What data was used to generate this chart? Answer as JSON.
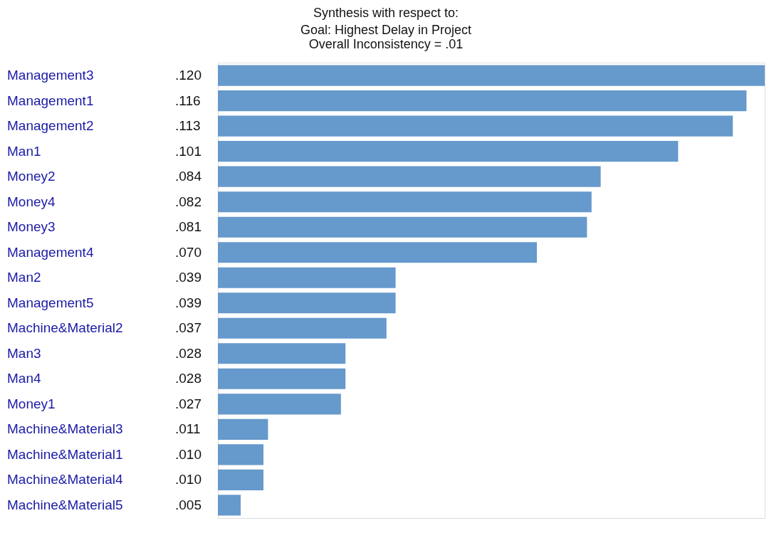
{
  "chart_data": {
    "type": "bar",
    "orientation": "horizontal",
    "title": "Synthesis with respect to:",
    "subtitle": "Goal: Highest Delay in Project\nOverall Inconsistency = .01",
    "categories": [
      "Management3",
      "Management1",
      "Management2",
      "Man1",
      "Money2",
      "Money4",
      "Money3",
      "Management4",
      "Man2",
      "Management5",
      "Machine&Material2",
      "Man3",
      "Man4",
      "Money1",
      "Machine&Material3",
      "Machine&Material1",
      "Machine&Material4",
      "Machine&Material5"
    ],
    "values": [
      0.12,
      0.116,
      0.113,
      0.101,
      0.084,
      0.082,
      0.081,
      0.07,
      0.039,
      0.039,
      0.037,
      0.028,
      0.028,
      0.027,
      0.011,
      0.01,
      0.01,
      0.005
    ],
    "value_labels": [
      ".120",
      ".116",
      ".113",
      ".101",
      ".084",
      ".082",
      ".081",
      ".070",
      ".039",
      ".039",
      ".037",
      ".028",
      ".028",
      ".027",
      ".011",
      ".010",
      ".010",
      ".005"
    ],
    "color": "#6699cc",
    "grid": false
  }
}
